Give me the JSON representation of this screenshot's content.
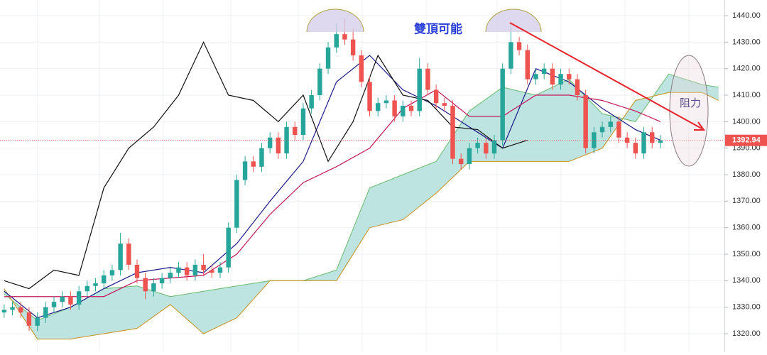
{
  "chart_data": {
    "type": "candlestick",
    "xlim": [
      -0.5,
      86.7
    ],
    "ylim": [
      1313.3,
      1445.9
    ],
    "yticks": [
      {
        "value": 1320,
        "label": "1320.00"
      },
      {
        "value": 1330,
        "label": "1330.00"
      },
      {
        "value": 1340,
        "label": "1340.00"
      },
      {
        "value": 1350,
        "label": "1350.00"
      },
      {
        "value": 1360,
        "label": "1360.00"
      },
      {
        "value": 1370,
        "label": "1370.00"
      },
      {
        "value": 1380,
        "label": "1380.00"
      },
      {
        "value": 1390,
        "label": "1390.00"
      },
      {
        "value": 1400,
        "label": "1400.00"
      },
      {
        "value": 1410,
        "label": "1410.00"
      },
      {
        "value": 1420,
        "label": "1420.00"
      },
      {
        "value": 1430,
        "label": "1430.00"
      },
      {
        "value": 1440,
        "label": "1440.00"
      }
    ],
    "grid": true,
    "annotations": {
      "pattern": "雙頂可能",
      "resistance": "阻力"
    },
    "candles": {
      "up_color": "#26a69a",
      "down_color": "#ef5350",
      "open": [
        1328,
        1329,
        1330,
        1328,
        1323,
        1326,
        1330,
        1332,
        1334,
        1331,
        1336,
        1338,
        1339,
        1342,
        1344,
        1354,
        1346,
        1341,
        1336,
        1339,
        1341,
        1343,
        1345,
        1342,
        1346,
        1344,
        1343,
        1345,
        1360,
        1378,
        1385,
        1383,
        1390,
        1394,
        1388,
        1398,
        1395,
        1405,
        1410,
        1420,
        1428,
        1433,
        1431,
        1425,
        1415,
        1404,
        1407,
        1408,
        1402,
        1406,
        1404,
        1420,
        1412,
        1407,
        1406,
        1386,
        1384,
        1390,
        1392,
        1388,
        1393,
        1420,
        1430,
        1427,
        1416,
        1418,
        1420,
        1414,
        1418,
        1416,
        1410,
        1390,
        1396,
        1398,
        1400,
        1394,
        1392,
        1388,
        1396,
        1392
      ],
      "high": [
        1331,
        1332,
        1332,
        1330,
        1328,
        1332,
        1334,
        1336,
        1336,
        1338,
        1340,
        1341,
        1344,
        1346,
        1358,
        1356,
        1348,
        1343,
        1341,
        1343,
        1345,
        1347,
        1347,
        1348,
        1350,
        1346,
        1347,
        1362,
        1380,
        1387,
        1387,
        1392,
        1396,
        1396,
        1400,
        1400,
        1407,
        1412,
        1422,
        1430,
        1437,
        1439,
        1435,
        1427,
        1417,
        1409,
        1410,
        1410,
        1408,
        1408,
        1424,
        1422,
        1414,
        1409,
        1408,
        1388,
        1392,
        1394,
        1394,
        1395,
        1422,
        1437,
        1432,
        1429,
        1420,
        1422,
        1422,
        1420,
        1420,
        1418,
        1412,
        1398,
        1400,
        1402,
        1402,
        1396,
        1394,
        1398,
        1398,
        1395
      ],
      "low": [
        1326,
        1327,
        1326,
        1321,
        1321,
        1324,
        1328,
        1330,
        1329,
        1329,
        1334,
        1336,
        1337,
        1340,
        1342,
        1344,
        1339,
        1333,
        1334,
        1337,
        1339,
        1341,
        1340,
        1340,
        1342,
        1341,
        1341,
        1343,
        1358,
        1376,
        1381,
        1381,
        1388,
        1386,
        1386,
        1393,
        1393,
        1403,
        1408,
        1418,
        1426,
        1429,
        1423,
        1413,
        1402,
        1402,
        1405,
        1400,
        1400,
        1402,
        1402,
        1410,
        1405,
        1404,
        1384,
        1382,
        1382,
        1388,
        1386,
        1386,
        1391,
        1418,
        1425,
        1414,
        1414,
        1416,
        1412,
        1412,
        1414,
        1408,
        1388,
        1388,
        1394,
        1396,
        1392,
        1390,
        1386,
        1386,
        1390,
        1390
      ],
      "close": [
        1329,
        1330,
        1328,
        1323,
        1326,
        1330,
        1332,
        1334,
        1331,
        1336,
        1338,
        1339,
        1342,
        1344,
        1354,
        1346,
        1341,
        1336,
        1339,
        1341,
        1343,
        1345,
        1342,
        1346,
        1344,
        1343,
        1345,
        1360,
        1378,
        1385,
        1383,
        1390,
        1394,
        1388,
        1398,
        1395,
        1405,
        1410,
        1420,
        1428,
        1433,
        1431,
        1425,
        1415,
        1404,
        1407,
        1408,
        1402,
        1406,
        1404,
        1420,
        1412,
        1407,
        1406,
        1386,
        1384,
        1390,
        1392,
        1388,
        1393,
        1420,
        1430,
        1427,
        1416,
        1418,
        1420,
        1414,
        1418,
        1416,
        1410,
        1390,
        1396,
        1398,
        1400,
        1394,
        1392,
        1388,
        1396,
        1392,
        1392.94
      ]
    },
    "cloud": {
      "fill": "#b2dfdb",
      "span_a_color": "#66bb6a",
      "span_b_color": "#c8901e",
      "x": [
        0,
        4,
        8,
        12,
        16,
        20,
        24,
        28,
        32,
        36,
        40,
        44,
        48,
        52,
        56,
        60,
        64,
        68,
        72,
        76,
        80,
        84,
        86
      ],
      "span_a": [
        1335,
        1325,
        1330,
        1337,
        1338,
        1334,
        1336,
        1338,
        1340,
        1340,
        1344,
        1375,
        1380,
        1385,
        1404,
        1413,
        1410,
        1416,
        1403,
        1400,
        1418,
        1414,
        1413
      ],
      "span_b": [
        1337,
        1318,
        1318,
        1320,
        1322,
        1331,
        1320,
        1326,
        1340,
        1340,
        1340,
        1360,
        1363,
        1373,
        1385,
        1385,
        1385,
        1385,
        1390,
        1408,
        1411,
        1411,
        1408
      ]
    },
    "lines": [
      {
        "color": "#1a1a8c",
        "x": [
          0,
          4,
          8,
          12,
          16,
          20,
          24,
          28,
          32,
          36,
          40,
          44,
          48,
          52,
          56,
          60,
          64,
          68,
          72,
          76,
          79
        ],
        "values": [
          1336,
          1326,
          1330,
          1337,
          1343,
          1345,
          1343,
          1354,
          1370,
          1385,
          1415,
          1425,
          1412,
          1406,
          1398,
          1390,
          1420,
          1415,
          1405,
          1397,
          1393
        ]
      },
      {
        "color": "#c2185b",
        "x": [
          0,
          4,
          8,
          12,
          16,
          20,
          24,
          28,
          32,
          36,
          40,
          44,
          48,
          52,
          56,
          60,
          64,
          68,
          72,
          76,
          79
        ],
        "values": [
          1334,
          1334,
          1334,
          1334,
          1340,
          1341,
          1342,
          1350,
          1365,
          1377,
          1383,
          1390,
          1405,
          1412,
          1402,
          1402,
          1410,
          1410,
          1408,
          1404,
          1400
        ]
      },
      {
        "color": "#111111",
        "x": [
          0,
          3,
          6,
          9,
          12,
          15,
          18,
          21,
          24,
          27,
          30,
          33,
          36,
          39,
          42,
          45,
          48,
          51,
          54,
          57,
          60,
          63
        ],
        "values": [
          1340,
          1337,
          1344,
          1342,
          1375,
          1390,
          1398,
          1410,
          1430,
          1410,
          1408,
          1400,
          1410,
          1385,
          1400,
          1425,
          1410,
          1408,
          1398,
          1397,
          1390,
          1393
        ]
      }
    ]
  }
}
